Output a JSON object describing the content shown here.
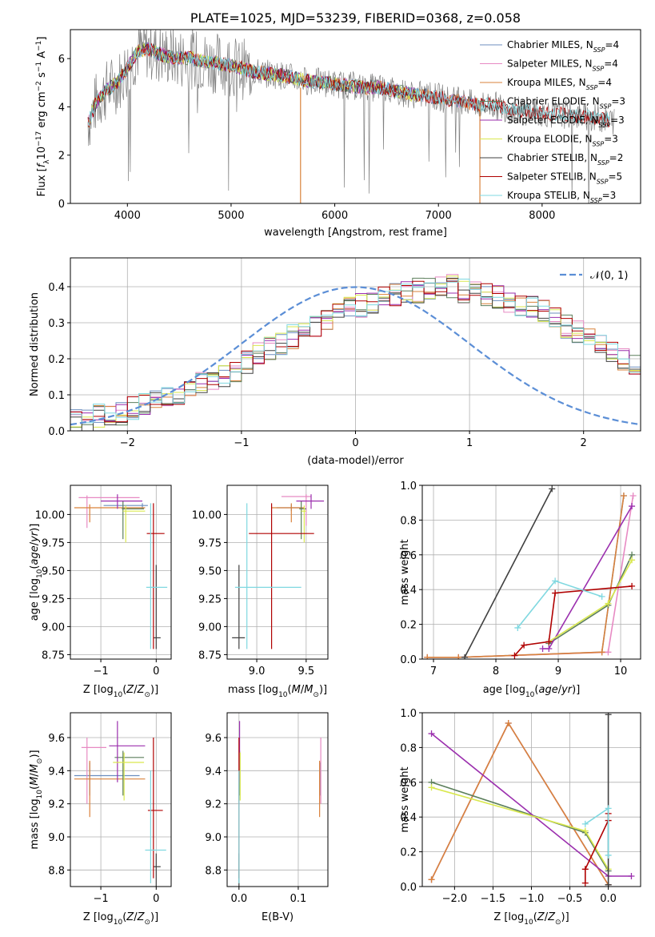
{
  "figure_title": "PLATE=1025, MJD=53239, FIBERID=0368, z=0.058",
  "colors": {
    "Chabrier MILES": "#6c8ebf",
    "Salpeter MILES": "#e78ac3",
    "Kroupa MILES": "#d9823b",
    "Chabrier ELODIE": "#5c7f5c",
    "Salpeter ELODIE": "#9b2fae",
    "Kroupa ELODIE": "#d9e84e",
    "Chabrier STELIB": "#404040",
    "Salpeter STELIB": "#b00000",
    "Kroupa STELIB": "#7fd8e0",
    "data": "#808080",
    "normal": "#5b8ed6"
  },
  "chart_data": [
    {
      "id": "spectrum",
      "type": "line",
      "title": "PLATE=1025, MJD=53239, FIBERID=0368, z=0.058",
      "xlabel": "wavelength [Angstrom, rest frame]",
      "ylabel": "Flux [f_λ 10^-17 erg cm^-2 s^-1 A^-1]",
      "xlim": [
        3450,
        8950
      ],
      "ylim": [
        0,
        7.2
      ],
      "xticks": [
        "4000",
        "5000",
        "6000",
        "7000",
        "8000"
      ],
      "yticks": [
        "0",
        "2",
        "4",
        "6"
      ],
      "legend": [
        {
          "base": "Chabrier MILES, N",
          "sub": "SSP",
          "tail": "=4"
        },
        {
          "base": "Salpeter MILES, N",
          "sub": "SSP",
          "tail": "=4"
        },
        {
          "base": "Kroupa MILES, N",
          "sub": "SSP",
          "tail": "=4"
        },
        {
          "base": "Chabrier ELODIE, N",
          "sub": "SSP",
          "tail": "=3"
        },
        {
          "base": "Salpeter ELODIE, N",
          "sub": "SSP",
          "tail": "=3"
        },
        {
          "base": "Kroupa ELODIE, N",
          "sub": "SSP",
          "tail": "=3"
        },
        {
          "base": "Chabrier STELIB, N",
          "sub": "SSP",
          "tail": "=2"
        },
        {
          "base": "Salpeter STELIB, N",
          "sub": "SSP",
          "tail": "=5"
        },
        {
          "base": "Kroupa STELIB, N",
          "sub": "SSP",
          "tail": "=3"
        }
      ],
      "continuum": [
        [
          3600,
          3.1
        ],
        [
          3700,
          4.2
        ],
        [
          3800,
          4.7
        ],
        [
          3900,
          5.0
        ],
        [
          4000,
          5.6
        ],
        [
          4100,
          6.3
        ],
        [
          4200,
          6.4
        ],
        [
          4300,
          6.2
        ],
        [
          4400,
          6.1
        ],
        [
          4500,
          6.0
        ],
        [
          4600,
          6.05
        ],
        [
          4700,
          5.9
        ],
        [
          4800,
          5.85
        ],
        [
          4900,
          5.8
        ],
        [
          5000,
          5.7
        ],
        [
          5100,
          5.6
        ],
        [
          5200,
          5.45
        ],
        [
          5300,
          5.4
        ],
        [
          5400,
          5.35
        ],
        [
          5500,
          5.3
        ],
        [
          5600,
          5.2
        ],
        [
          5700,
          5.1
        ],
        [
          5800,
          5.05
        ],
        [
          5900,
          5.0
        ],
        [
          6000,
          4.95
        ],
        [
          6100,
          4.9
        ],
        [
          6200,
          4.85
        ],
        [
          6300,
          4.8
        ],
        [
          6400,
          4.8
        ],
        [
          6500,
          4.75
        ],
        [
          6600,
          4.65
        ],
        [
          6700,
          4.55
        ],
        [
          6800,
          4.5
        ],
        [
          6900,
          4.45
        ],
        [
          7000,
          4.4
        ],
        [
          7100,
          4.3
        ],
        [
          7200,
          4.25
        ],
        [
          7300,
          4.15
        ],
        [
          7400,
          4.05
        ],
        [
          7500,
          4.1
        ],
        [
          7600,
          4.0
        ],
        [
          7700,
          3.9
        ],
        [
          7800,
          3.85
        ],
        [
          7900,
          3.8
        ],
        [
          8000,
          3.75
        ],
        [
          8100,
          3.7
        ],
        [
          8200,
          3.7
        ],
        [
          8300,
          3.65
        ],
        [
          8400,
          3.6
        ],
        [
          8500,
          3.55
        ],
        [
          8600,
          3.5
        ],
        [
          8700,
          3.4
        ]
      ]
    },
    {
      "id": "residuals",
      "type": "histogram",
      "xlabel": "(data-model)/error",
      "ylabel": "Normed distribution",
      "xlim": [
        -2.5,
        2.5
      ],
      "ylim": [
        0,
        0.48
      ],
      "xticks": [
        "−2",
        "−1",
        "0",
        "1",
        "2"
      ],
      "yticks": [
        "0.0",
        "0.1",
        "0.2",
        "0.3",
        "0.4"
      ],
      "legend_label": "𝒩(0, 1)",
      "bin_edges_from": -2.5,
      "bin_width": 0.1,
      "series_values": [
        0.03,
        0.03,
        0.04,
        0.04,
        0.05,
        0.06,
        0.07,
        0.08,
        0.09,
        0.1,
        0.12,
        0.13,
        0.14,
        0.15,
        0.17,
        0.19,
        0.21,
        0.23,
        0.24,
        0.26,
        0.27,
        0.29,
        0.31,
        0.33,
        0.34,
        0.35,
        0.36,
        0.37,
        0.38,
        0.38,
        0.39,
        0.39,
        0.4,
        0.4,
        0.39,
        0.39,
        0.38,
        0.37,
        0.36,
        0.35,
        0.34,
        0.33,
        0.31,
        0.29,
        0.27,
        0.26,
        0.24,
        0.22,
        0.2,
        0.18
      ]
    },
    {
      "id": "age_vs_Z",
      "type": "errorbar",
      "xlabel": "Z [log10(Z/Z⊙)]",
      "ylabel": "age  [log10(age/yr)]",
      "xlim": [
        -1.55,
        0.27
      ],
      "ylim": [
        8.71,
        10.26
      ],
      "xticks": [
        "−1",
        "0"
      ],
      "yticks": [
        "8.75",
        "9.00",
        "9.25",
        "9.50",
        "9.75",
        "10.00"
      ],
      "points": [
        {
          "model": "Chabrier MILES",
          "x": -0.25,
          "y": 10.08,
          "xlo": -0.95,
          "xhi": -0.15,
          "ylo": 10.05,
          "yhi": 10.1
        },
        {
          "model": "Salpeter MILES",
          "x": -1.25,
          "y": 10.15,
          "xlo": -1.4,
          "xhi": -0.3,
          "ylo": 9.88,
          "yhi": 10.17
        },
        {
          "model": "Kroupa MILES",
          "x": -1.2,
          "y": 10.06,
          "xlo": -1.48,
          "xhi": -0.2,
          "ylo": 9.93,
          "yhi": 10.09
        },
        {
          "model": "Chabrier ELODIE",
          "x": -0.6,
          "y": 10.05,
          "xlo": -0.62,
          "xhi": -0.22,
          "ylo": 9.78,
          "yhi": 10.12
        },
        {
          "model": "Salpeter ELODIE",
          "x": -0.7,
          "y": 10.12,
          "xlo": -1.0,
          "xhi": -0.25,
          "ylo": 10.05,
          "yhi": 10.18
        },
        {
          "model": "Kroupa ELODIE",
          "x": -0.55,
          "y": 10.03,
          "xlo": -0.6,
          "xhi": -0.2,
          "ylo": 9.75,
          "yhi": 10.08
        },
        {
          "model": "Chabrier STELIB",
          "x": 0.0,
          "y": 8.9,
          "xlo": -0.05,
          "xhi": 0.08,
          "ylo": 8.8,
          "yhi": 9.55
        },
        {
          "model": "Salpeter STELIB",
          "x": -0.05,
          "y": 9.83,
          "xlo": -0.17,
          "xhi": 0.15,
          "ylo": 8.8,
          "yhi": 10.1
        },
        {
          "model": "Kroupa STELIB",
          "x": -0.1,
          "y": 9.35,
          "xlo": -0.18,
          "xhi": 0.2,
          "ylo": 8.8,
          "yhi": 10.1
        }
      ]
    },
    {
      "id": "age_vs_mass",
      "type": "errorbar",
      "xlabel": "mass [log10(M/M⊙)]",
      "ylabel": "",
      "xlim": [
        8.7,
        9.72
      ],
      "ylim": [
        8.71,
        10.26
      ],
      "xticks": [
        "9.0",
        "9.5"
      ],
      "yticks": [
        "8.75",
        "9.00",
        "9.25",
        "9.50",
        "9.75",
        "10.00"
      ],
      "points": [
        {
          "model": "Chabrier MILES",
          "x": 9.35,
          "y": 10.06,
          "xlo": 9.2,
          "xhi": 9.45,
          "ylo": 10.03,
          "yhi": 10.09
        },
        {
          "model": "Salpeter MILES",
          "x": 9.5,
          "y": 10.16,
          "xlo": 9.25,
          "xhi": 9.55,
          "ylo": 9.9,
          "yhi": 10.18
        },
        {
          "model": "Kroupa MILES",
          "x": 9.35,
          "y": 10.06,
          "xlo": 9.15,
          "xhi": 9.48,
          "ylo": 9.93,
          "yhi": 10.1
        },
        {
          "model": "Chabrier ELODIE",
          "x": 9.45,
          "y": 10.05,
          "xlo": 9.43,
          "xhi": 9.5,
          "ylo": 9.78,
          "yhi": 10.12
        },
        {
          "model": "Salpeter ELODIE",
          "x": 9.55,
          "y": 10.12,
          "xlo": 9.4,
          "xhi": 9.68,
          "ylo": 10.05,
          "yhi": 10.18
        },
        {
          "model": "Kroupa ELODIE",
          "x": 9.48,
          "y": 10.03,
          "xlo": 9.45,
          "xhi": 9.5,
          "ylo": 9.75,
          "yhi": 10.08
        },
        {
          "model": "Chabrier STELIB",
          "x": 8.82,
          "y": 8.9,
          "xlo": 8.75,
          "xhi": 8.88,
          "ylo": 8.8,
          "yhi": 9.55
        },
        {
          "model": "Salpeter STELIB",
          "x": 9.15,
          "y": 9.83,
          "xlo": 8.92,
          "xhi": 9.58,
          "ylo": 8.8,
          "yhi": 10.1
        },
        {
          "model": "Kroupa STELIB",
          "x": 8.9,
          "y": 9.35,
          "xlo": 8.78,
          "xhi": 9.45,
          "ylo": 8.8,
          "yhi": 10.1
        }
      ]
    },
    {
      "id": "weight_vs_age",
      "type": "line",
      "xlabel": "age  [log10(age/yr)]",
      "ylabel": "mass weight",
      "xlim": [
        6.82,
        10.32
      ],
      "ylim": [
        0,
        1.0
      ],
      "xticks": [
        "7",
        "8",
        "9",
        "10"
      ],
      "yticks": [
        "0.0",
        "0.2",
        "0.4",
        "0.6",
        "0.8",
        "1.0"
      ],
      "series": [
        {
          "model": "Chabrier MILES",
          "x": [
            6.9,
            7.4,
            9.7,
            10.05
          ],
          "y": [
            0.01,
            0.01,
            0.04,
            0.94
          ]
        },
        {
          "model": "Salpeter MILES",
          "x": [
            6.9,
            7.4,
            9.8,
            10.2
          ],
          "y": [
            0.01,
            0.01,
            0.04,
            0.94
          ]
        },
        {
          "model": "Kroupa MILES",
          "x": [
            6.9,
            7.4,
            9.7,
            10.05
          ],
          "y": [
            0.01,
            0.01,
            0.04,
            0.94
          ]
        },
        {
          "model": "Chabrier ELODIE",
          "x": [
            8.85,
            9.8,
            10.18
          ],
          "y": [
            0.09,
            0.31,
            0.6
          ]
        },
        {
          "model": "Salpeter ELODIE",
          "x": [
            8.75,
            8.85,
            10.18
          ],
          "y": [
            0.06,
            0.06,
            0.88
          ]
        },
        {
          "model": "Kroupa ELODIE",
          "x": [
            8.85,
            9.8,
            10.18
          ],
          "y": [
            0.1,
            0.32,
            0.57
          ]
        },
        {
          "model": "Chabrier STELIB",
          "x": [
            7.5,
            8.9
          ],
          "y": [
            0.01,
            0.98
          ]
        },
        {
          "model": "Salpeter STELIB",
          "x": [
            8.3,
            8.45,
            8.85,
            8.95,
            10.18
          ],
          "y": [
            0.02,
            0.08,
            0.1,
            0.38,
            0.42
          ]
        },
        {
          "model": "Kroupa STELIB",
          "x": [
            8.35,
            8.95,
            9.7
          ],
          "y": [
            0.18,
            0.45,
            0.36
          ]
        }
      ]
    },
    {
      "id": "mass_vs_Z",
      "type": "errorbar",
      "xlabel": "Z [log10(Z/Z⊙)]",
      "ylabel": "mass [log10(M/M⊙)]",
      "xlim": [
        -1.55,
        0.27
      ],
      "ylim": [
        8.7,
        9.75
      ],
      "xticks": [
        "−1",
        "0"
      ],
      "yticks": [
        "8.8",
        "9.0",
        "9.2",
        "9.4",
        "9.6"
      ],
      "points": [
        {
          "model": "Chabrier MILES",
          "x": -1.2,
          "y": 9.37,
          "xlo": -1.48,
          "xhi": -0.3,
          "ylo": 9.25,
          "yhi": 9.45
        },
        {
          "model": "Salpeter MILES",
          "x": -1.25,
          "y": 9.54,
          "xlo": -1.35,
          "xhi": -0.9,
          "ylo": 9.2,
          "yhi": 9.6
        },
        {
          "model": "Kroupa MILES",
          "x": -1.2,
          "y": 9.35,
          "xlo": -1.48,
          "xhi": -0.2,
          "ylo": 9.12,
          "yhi": 9.46
        },
        {
          "model": "Chabrier ELODIE",
          "x": -0.6,
          "y": 9.48,
          "xlo": -0.75,
          "xhi": -0.22,
          "ylo": 9.25,
          "yhi": 9.52
        },
        {
          "model": "Salpeter ELODIE",
          "x": -0.7,
          "y": 9.55,
          "xlo": -0.85,
          "xhi": -0.2,
          "ylo": 9.33,
          "yhi": 9.7
        },
        {
          "model": "Kroupa ELODIE",
          "x": -0.58,
          "y": 9.45,
          "xlo": -0.78,
          "xhi": -0.22,
          "ylo": 9.22,
          "yhi": 9.51
        },
        {
          "model": "Chabrier STELIB",
          "x": 0.0,
          "y": 8.82,
          "xlo": -0.05,
          "xhi": 0.08,
          "ylo": 8.7,
          "yhi": 8.9
        },
        {
          "model": "Salpeter STELIB",
          "x": -0.05,
          "y": 9.16,
          "xlo": -0.15,
          "xhi": 0.12,
          "ylo": 8.75,
          "yhi": 9.6
        },
        {
          "model": "Kroupa STELIB",
          "x": -0.1,
          "y": 8.92,
          "xlo": -0.2,
          "xhi": 0.18,
          "ylo": 8.72,
          "yhi": 9.4
        }
      ]
    },
    {
      "id": "mass_vs_EBV",
      "type": "errorbar",
      "xlabel": "E(B-V)",
      "ylabel": "",
      "xlim": [
        -0.02,
        0.15
      ],
      "ylim": [
        8.7,
        9.75
      ],
      "xticks": [
        "0.0",
        "0.1"
      ],
      "yticks": [
        "8.8",
        "9.0",
        "9.2",
        "9.4",
        "9.6"
      ],
      "points": [
        {
          "model": "Chabrier MILES",
          "x": 0.137,
          "y": 9.37,
          "xlo": 0.137,
          "xhi": 0.137,
          "ylo": 9.25,
          "yhi": 9.45
        },
        {
          "model": "Salpeter MILES",
          "x": 0.138,
          "y": 9.54,
          "xlo": 0.138,
          "xhi": 0.138,
          "ylo": 9.2,
          "yhi": 9.6
        },
        {
          "model": "Kroupa MILES",
          "x": 0.136,
          "y": 9.35,
          "xlo": 0.136,
          "xhi": 0.136,
          "ylo": 9.12,
          "yhi": 9.46
        },
        {
          "model": "Chabrier ELODIE",
          "x": 0.001,
          "y": 9.48,
          "xlo": 0.001,
          "xhi": 0.001,
          "ylo": 9.25,
          "yhi": 9.52
        },
        {
          "model": "Salpeter ELODIE",
          "x": 0.001,
          "y": 9.55,
          "xlo": 0.001,
          "xhi": 0.001,
          "ylo": 9.33,
          "yhi": 9.7
        },
        {
          "model": "Kroupa ELODIE",
          "x": 0.002,
          "y": 9.45,
          "xlo": 0.002,
          "xhi": 0.002,
          "ylo": 9.22,
          "yhi": 9.51
        },
        {
          "model": "Chabrier STELIB",
          "x": 0.0,
          "y": 8.82,
          "xlo": 0.0,
          "xhi": 0.0,
          "ylo": 8.7,
          "yhi": 8.9
        },
        {
          "model": "Salpeter STELIB",
          "x": 0.0,
          "y": 9.16,
          "xlo": 0.0,
          "xhi": 0.0,
          "ylo": 8.75,
          "yhi": 9.6
        },
        {
          "model": "Kroupa STELIB",
          "x": 0.0,
          "y": 8.92,
          "xlo": 0.0,
          "xhi": 0.0,
          "ylo": 8.72,
          "yhi": 9.4
        }
      ]
    },
    {
      "id": "weight_vs_Z",
      "type": "line",
      "xlabel": "Z [log10(Z/Z⊙)]",
      "ylabel": "mass weight",
      "xlim": [
        -2.42,
        0.42
      ],
      "ylim": [
        0,
        1.0
      ],
      "xticks": [
        "−2.0",
        "−1.5",
        "−1.0",
        "−0.5",
        "0.0"
      ],
      "yticks": [
        "0.0",
        "0.2",
        "0.4",
        "0.6",
        "0.8",
        "1.0"
      ],
      "series": [
        {
          "model": "Chabrier MILES",
          "x": [
            -2.3,
            -1.3,
            0.0
          ],
          "y": [
            0.04,
            0.94,
            0.01
          ]
        },
        {
          "model": "Salpeter MILES",
          "x": [
            -2.3,
            -1.3,
            0.0
          ],
          "y": [
            0.04,
            0.94,
            0.01
          ]
        },
        {
          "model": "Kroupa MILES",
          "x": [
            -2.3,
            -1.3,
            0.0
          ],
          "y": [
            0.04,
            0.94,
            0.01
          ]
        },
        {
          "model": "Chabrier ELODIE",
          "x": [
            -2.3,
            -0.3,
            0.0
          ],
          "y": [
            0.6,
            0.31,
            0.09
          ]
        },
        {
          "model": "Salpeter ELODIE",
          "x": [
            -2.3,
            0.0,
            0.3
          ],
          "y": [
            0.88,
            0.06,
            0.06
          ]
        },
        {
          "model": "Kroupa ELODIE",
          "x": [
            -2.3,
            -0.3,
            0.0
          ],
          "y": [
            0.57,
            0.32,
            0.1
          ]
        },
        {
          "model": "Chabrier STELIB",
          "x": [
            0.0,
            0.0
          ],
          "y": [
            0.01,
            0.99
          ]
        },
        {
          "model": "Salpeter STELIB",
          "x": [
            -0.3,
            -0.3,
            0.0,
            0.0
          ],
          "y": [
            0.02,
            0.1,
            0.38,
            0.42
          ]
        },
        {
          "model": "Kroupa STELIB",
          "x": [
            -0.3,
            0.0,
            0.0
          ],
          "y": [
            0.36,
            0.45,
            0.18
          ]
        }
      ]
    }
  ]
}
